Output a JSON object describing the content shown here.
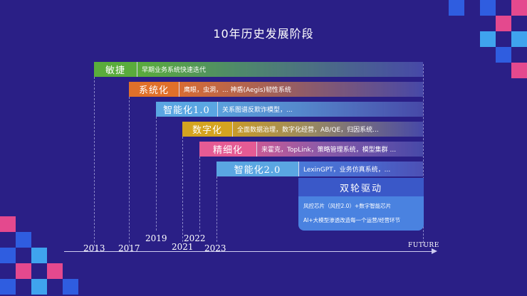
{
  "title": "10年历史发展阶段",
  "timeline": [
    {
      "tag": "敏捷",
      "desc": "早期业务系统快速迭代",
      "color": "#5aac3c"
    },
    {
      "tag": "系统化",
      "desc": "鹰眼，虫洞，...  神盾(Aegis)韧性系统",
      "color": "#e0702a"
    },
    {
      "tag": "智能化1.0",
      "desc": "关系图谱反欺诈模型，...",
      "color": "#5aa6e2"
    },
    {
      "tag": "数字化",
      "desc": "全面数据治理，数字化经营，AB/QE，归因系统...",
      "color": "#d4a420"
    },
    {
      "tag": "精细化",
      "desc": "来霍克，TopLink，策略管理系统，模型集群 ...",
      "color": "#e55b94"
    },
    {
      "tag": "智能化2.0",
      "desc": "LexinGPT，业务仿真系统，...",
      "color": "#5aa6e2"
    }
  ],
  "dual": {
    "title": "双轮驱动",
    "line1": "风控芯片（风控2.0）+数字智能芯片",
    "line2": "AI+大模型渗透改造每一个运营/经营环节"
  },
  "years": [
    "2013",
    "2017",
    "2019",
    "2021",
    "2022",
    "2023"
  ],
  "future": "FUTURE",
  "colors": {
    "background": "#2a1f86",
    "square_pink": "#e4498e",
    "square_blue": "#2f5de0",
    "square_lightblue": "#3fa3ee"
  }
}
